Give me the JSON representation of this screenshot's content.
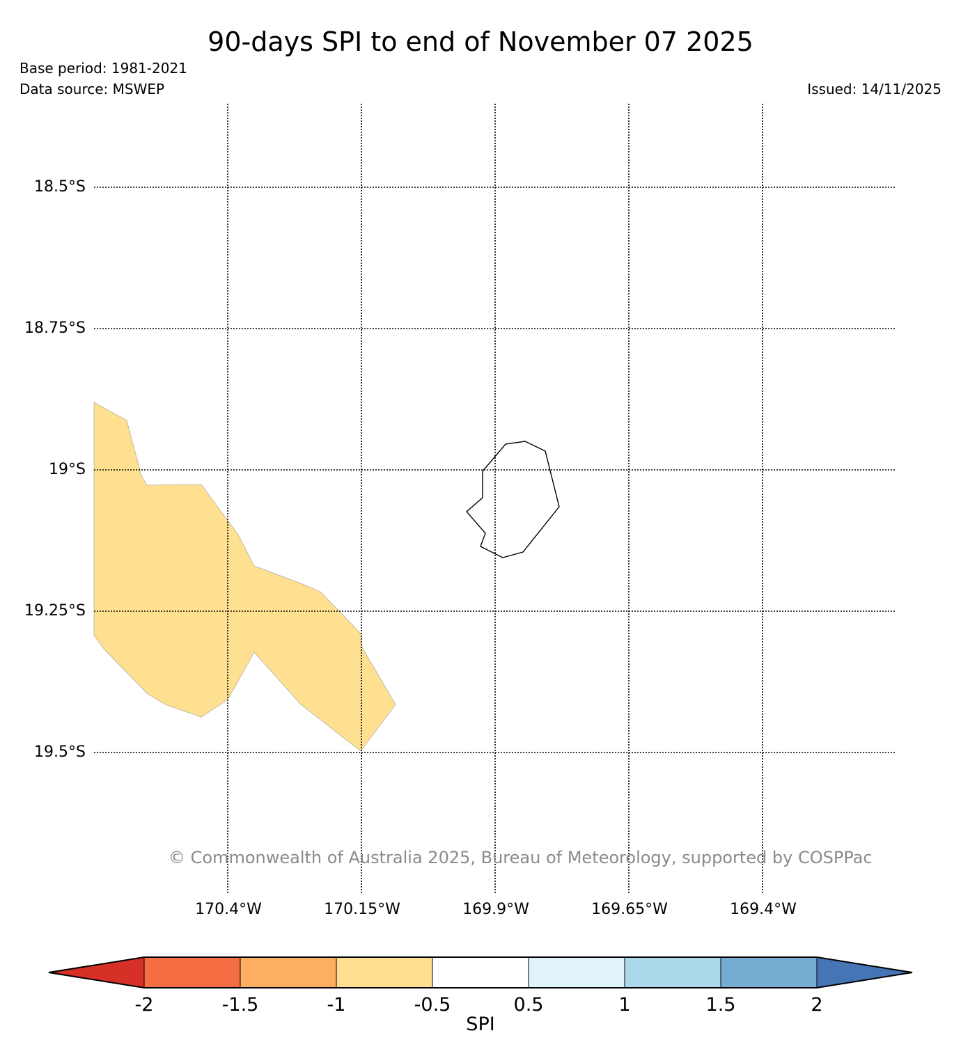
{
  "header": {
    "title": "90-days SPI to end of November 07 2025",
    "base_period": "Base period: 1981-2021",
    "data_source": "Data source: MSWEP",
    "issued": "Issued: 14/11/2025"
  },
  "map": {
    "latitudes": [
      "18.5°S",
      "18.75°S",
      "19°S",
      "19.25°S",
      "19.5°S"
    ],
    "longitudes": [
      "170.4°W",
      "170.15°W",
      "169.9°W",
      "169.65°W",
      "169.4°W"
    ],
    "shade_color": "#fee090",
    "coast_color": "#000000",
    "copyright": "© Commonwealth of Australia 2025, Bureau of Meteorology, supported by COSPPac"
  },
  "colorbar": {
    "label": "SPI",
    "ticks": [
      "-2",
      "-1.5",
      "-1",
      "-0.5",
      "0.5",
      "1",
      "1.5",
      "2"
    ],
    "colors": [
      "#d73027",
      "#f46d43",
      "#fdae61",
      "#fee090",
      "#ffffff",
      "#e0f3f8",
      "#abd9e9",
      "#74add1",
      "#4575b4"
    ]
  }
}
